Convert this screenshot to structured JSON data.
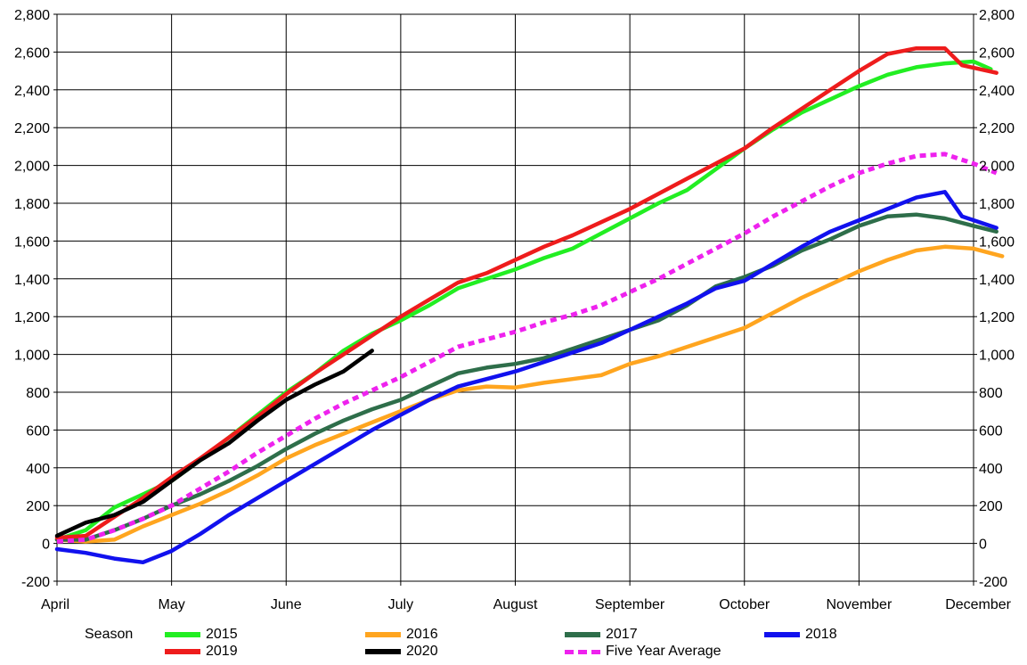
{
  "chart_data": {
    "type": "line",
    "xlabel": "",
    "ylabel": "",
    "x_categories": [
      "April",
      "May",
      "June",
      "July",
      "August",
      "September",
      "October",
      "November",
      "December"
    ],
    "ylim": [
      -200,
      2800
    ],
    "y_ticks": [
      "-200",
      "0",
      "200",
      "400",
      "600",
      "800",
      "1,000",
      "1,200",
      "1,400",
      "1,600",
      "1,800",
      "2,000",
      "2,200",
      "2,400",
      "2,600",
      "2,800"
    ],
    "y_tick_values": [
      -200,
      0,
      200,
      400,
      600,
      800,
      1000,
      1200,
      1400,
      1600,
      1800,
      2000,
      2200,
      2400,
      2600,
      2800
    ],
    "grid": true,
    "legend_title": "Season",
    "legend_position": "bottom",
    "series": [
      {
        "name": "2015",
        "color": "#22ee22",
        "dashed": false,
        "points": [
          [
            0,
            20
          ],
          [
            0.25,
            70
          ],
          [
            0.5,
            190
          ],
          [
            0.75,
            260
          ],
          [
            1,
            330
          ],
          [
            1.25,
            440
          ],
          [
            1.5,
            560
          ],
          [
            1.75,
            680
          ],
          [
            2,
            800
          ],
          [
            2.25,
            900
          ],
          [
            2.5,
            1020
          ],
          [
            2.75,
            1110
          ],
          [
            3,
            1180
          ],
          [
            3.25,
            1260
          ],
          [
            3.5,
            1350
          ],
          [
            3.75,
            1400
          ],
          [
            4,
            1450
          ],
          [
            4.25,
            1510
          ],
          [
            4.5,
            1560
          ],
          [
            4.75,
            1640
          ],
          [
            5,
            1720
          ],
          [
            5.25,
            1800
          ],
          [
            5.5,
            1870
          ],
          [
            5.75,
            1980
          ],
          [
            6,
            2090
          ],
          [
            6.25,
            2190
          ],
          [
            6.5,
            2280
          ],
          [
            6.75,
            2350
          ],
          [
            7,
            2420
          ],
          [
            7.25,
            2480
          ],
          [
            7.5,
            2520
          ],
          [
            7.75,
            2540
          ],
          [
            8,
            2550
          ],
          [
            8.15,
            2510
          ]
        ]
      },
      {
        "name": "2016",
        "color": "#ffa51f",
        "dashed": false,
        "points": [
          [
            0,
            20
          ],
          [
            0.25,
            10
          ],
          [
            0.5,
            20
          ],
          [
            0.75,
            90
          ],
          [
            1,
            150
          ],
          [
            1.25,
            210
          ],
          [
            1.5,
            280
          ],
          [
            1.75,
            360
          ],
          [
            2,
            450
          ],
          [
            2.25,
            520
          ],
          [
            2.5,
            580
          ],
          [
            2.75,
            640
          ],
          [
            3,
            700
          ],
          [
            3.25,
            760
          ],
          [
            3.5,
            810
          ],
          [
            3.75,
            830
          ],
          [
            4,
            825
          ],
          [
            4.25,
            850
          ],
          [
            4.5,
            870
          ],
          [
            4.75,
            890
          ],
          [
            5,
            950
          ],
          [
            5.25,
            990
          ],
          [
            5.5,
            1040
          ],
          [
            5.75,
            1090
          ],
          [
            6,
            1140
          ],
          [
            6.25,
            1220
          ],
          [
            6.5,
            1300
          ],
          [
            6.75,
            1370
          ],
          [
            7,
            1440
          ],
          [
            7.25,
            1500
          ],
          [
            7.5,
            1550
          ],
          [
            7.75,
            1570
          ],
          [
            8,
            1560
          ],
          [
            8.25,
            1520
          ]
        ]
      },
      {
        "name": "2017",
        "color": "#2e6e4a",
        "dashed": false,
        "points": [
          [
            0,
            20
          ],
          [
            0.25,
            20
          ],
          [
            0.5,
            70
          ],
          [
            0.75,
            130
          ],
          [
            1,
            200
          ],
          [
            1.25,
            260
          ],
          [
            1.5,
            330
          ],
          [
            1.75,
            410
          ],
          [
            2,
            500
          ],
          [
            2.25,
            580
          ],
          [
            2.5,
            650
          ],
          [
            2.75,
            710
          ],
          [
            3,
            760
          ],
          [
            3.25,
            830
          ],
          [
            3.5,
            900
          ],
          [
            3.75,
            930
          ],
          [
            4,
            950
          ],
          [
            4.25,
            980
          ],
          [
            4.5,
            1030
          ],
          [
            4.75,
            1080
          ],
          [
            5,
            1130
          ],
          [
            5.25,
            1180
          ],
          [
            5.5,
            1260
          ],
          [
            5.75,
            1360
          ],
          [
            6,
            1410
          ],
          [
            6.25,
            1470
          ],
          [
            6.5,
            1550
          ],
          [
            6.75,
            1610
          ],
          [
            7,
            1680
          ],
          [
            7.25,
            1730
          ],
          [
            7.5,
            1740
          ],
          [
            7.75,
            1720
          ],
          [
            8,
            1680
          ],
          [
            8.2,
            1650
          ]
        ]
      },
      {
        "name": "2018",
        "color": "#1111ee",
        "dashed": false,
        "points": [
          [
            0,
            -30
          ],
          [
            0.25,
            -50
          ],
          [
            0.5,
            -80
          ],
          [
            0.75,
            -100
          ],
          [
            1,
            -40
          ],
          [
            1.25,
            50
          ],
          [
            1.5,
            150
          ],
          [
            1.75,
            240
          ],
          [
            2,
            330
          ],
          [
            2.25,
            420
          ],
          [
            2.5,
            510
          ],
          [
            2.75,
            600
          ],
          [
            3,
            680
          ],
          [
            3.25,
            760
          ],
          [
            3.5,
            830
          ],
          [
            3.75,
            870
          ],
          [
            4,
            910
          ],
          [
            4.25,
            960
          ],
          [
            4.5,
            1010
          ],
          [
            4.75,
            1060
          ],
          [
            5,
            1130
          ],
          [
            5.25,
            1200
          ],
          [
            5.5,
            1270
          ],
          [
            5.75,
            1350
          ],
          [
            6,
            1390
          ],
          [
            6.25,
            1480
          ],
          [
            6.5,
            1570
          ],
          [
            6.75,
            1650
          ],
          [
            7,
            1710
          ],
          [
            7.25,
            1770
          ],
          [
            7.5,
            1830
          ],
          [
            7.75,
            1860
          ],
          [
            7.9,
            1730
          ],
          [
            8.2,
            1670
          ]
        ]
      },
      {
        "name": "2019",
        "color": "#ee1c1c",
        "dashed": false,
        "points": [
          [
            0,
            30
          ],
          [
            0.25,
            40
          ],
          [
            0.5,
            140
          ],
          [
            0.75,
            240
          ],
          [
            1,
            350
          ],
          [
            1.25,
            450
          ],
          [
            1.5,
            560
          ],
          [
            1.75,
            670
          ],
          [
            2,
            790
          ],
          [
            2.25,
            900
          ],
          [
            2.5,
            1000
          ],
          [
            2.75,
            1100
          ],
          [
            3,
            1200
          ],
          [
            3.25,
            1290
          ],
          [
            3.5,
            1380
          ],
          [
            3.75,
            1430
          ],
          [
            4,
            1500
          ],
          [
            4.25,
            1570
          ],
          [
            4.5,
            1630
          ],
          [
            4.75,
            1700
          ],
          [
            5,
            1770
          ],
          [
            5.25,
            1850
          ],
          [
            5.5,
            1930
          ],
          [
            5.75,
            2010
          ],
          [
            6,
            2090
          ],
          [
            6.25,
            2200
          ],
          [
            6.5,
            2300
          ],
          [
            6.75,
            2400
          ],
          [
            7,
            2500
          ],
          [
            7.25,
            2590
          ],
          [
            7.5,
            2620
          ],
          [
            7.75,
            2620
          ],
          [
            7.9,
            2530
          ],
          [
            8.2,
            2490
          ]
        ]
      },
      {
        "name": "2020",
        "color": "#000000",
        "dashed": false,
        "points": [
          [
            0,
            40
          ],
          [
            0.25,
            110
          ],
          [
            0.5,
            150
          ],
          [
            0.75,
            220
          ],
          [
            1,
            330
          ],
          [
            1.25,
            440
          ],
          [
            1.5,
            530
          ],
          [
            1.75,
            650
          ],
          [
            2,
            760
          ],
          [
            2.25,
            840
          ],
          [
            2.5,
            910
          ],
          [
            2.75,
            1020
          ]
        ]
      },
      {
        "name": "Five Year Average",
        "color": "#ee22ee",
        "dashed": true,
        "points": [
          [
            0,
            10
          ],
          [
            0.25,
            20
          ],
          [
            0.5,
            70
          ],
          [
            0.75,
            130
          ],
          [
            1,
            200
          ],
          [
            1.25,
            290
          ],
          [
            1.5,
            380
          ],
          [
            1.75,
            480
          ],
          [
            2,
            570
          ],
          [
            2.25,
            660
          ],
          [
            2.5,
            740
          ],
          [
            2.75,
            810
          ],
          [
            3,
            880
          ],
          [
            3.25,
            960
          ],
          [
            3.5,
            1040
          ],
          [
            3.75,
            1080
          ],
          [
            4,
            1120
          ],
          [
            4.25,
            1170
          ],
          [
            4.5,
            1210
          ],
          [
            4.75,
            1260
          ],
          [
            5,
            1330
          ],
          [
            5.25,
            1400
          ],
          [
            5.5,
            1480
          ],
          [
            5.75,
            1560
          ],
          [
            6,
            1640
          ],
          [
            6.25,
            1730
          ],
          [
            6.5,
            1810
          ],
          [
            6.75,
            1890
          ],
          [
            7,
            1960
          ],
          [
            7.25,
            2010
          ],
          [
            7.5,
            2050
          ],
          [
            7.75,
            2060
          ],
          [
            8,
            2010
          ],
          [
            8.2,
            1960
          ]
        ]
      }
    ]
  }
}
